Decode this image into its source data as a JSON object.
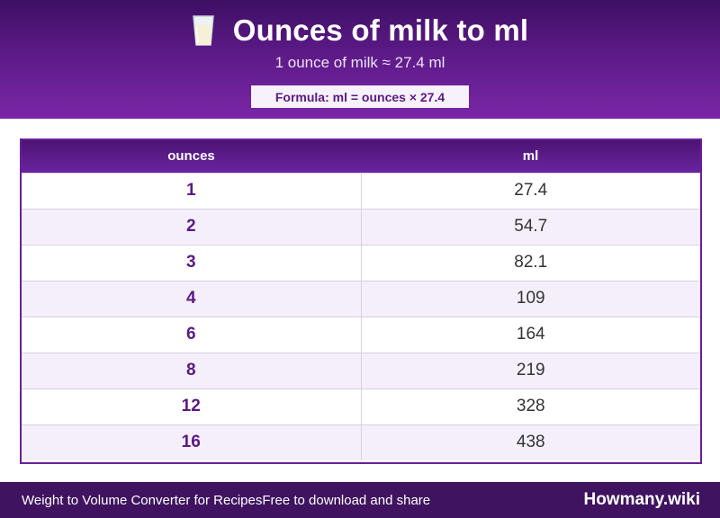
{
  "header": {
    "icon": "milk-glass-icon",
    "title": "Ounces of milk to ml",
    "subtitle": "1 ounce of milk ≈ 27.4 ml",
    "formula": "Formula: ml = ounces × 27.4"
  },
  "table": {
    "columns": [
      "ounces",
      "ml"
    ],
    "rows": [
      {
        "ounces": "1",
        "ml": "27.4"
      },
      {
        "ounces": "2",
        "ml": "54.7"
      },
      {
        "ounces": "3",
        "ml": "82.1"
      },
      {
        "ounces": "4",
        "ml": "109"
      },
      {
        "ounces": "6",
        "ml": "164"
      },
      {
        "ounces": "8",
        "ml": "219"
      },
      {
        "ounces": "12",
        "ml": "328"
      },
      {
        "ounces": "16",
        "ml": "438"
      }
    ]
  },
  "footer": {
    "left_a": "Weight to Volume Converter for Recipes",
    "left_b": "Free to download and share",
    "brand": "Howmany.wiki"
  },
  "colors": {
    "header_dark": "#3e0f63",
    "header_light": "#7a27a8",
    "accent": "#5a1a82",
    "row_alt": "#f4effa",
    "footer_bg": "#3f135f"
  }
}
